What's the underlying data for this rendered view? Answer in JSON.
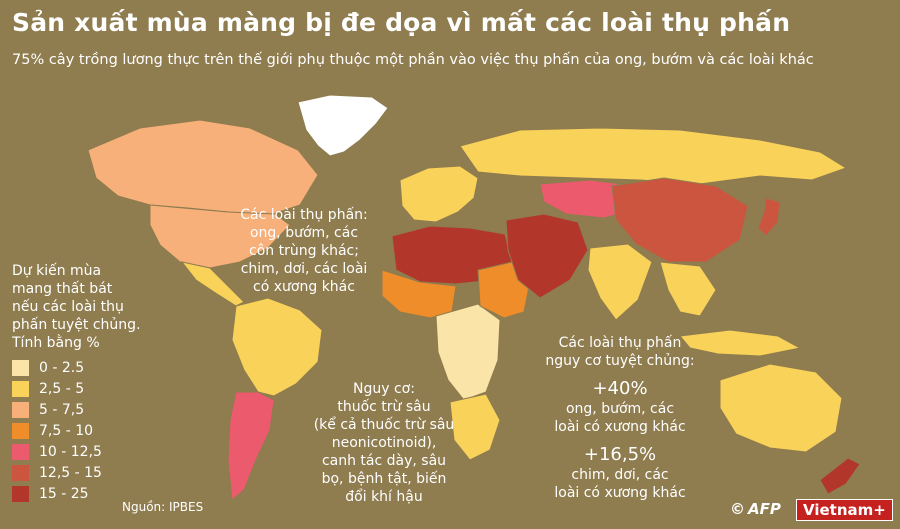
{
  "title": "Sản xuất mùa màng bị đe dọa vì mất các loài thụ phấn",
  "subtitle": "75% cây trồng lương thực trên thế giới phụ thuộc một phần vào việc thụ phấn của ong, bướm và các loài khác",
  "pollinators_note": [
    "Các loài thụ phấn:",
    "ong, bướm, các",
    "côn trùng khác;",
    "chim, dơi, các loài",
    "có xương khác"
  ],
  "legend": {
    "title": [
      "Dự kiến mùa",
      "mang thất bát",
      "nếu các loài thụ",
      "phấn tuyệt chủng.",
      "Tính bằng %"
    ],
    "items": [
      {
        "label": "0 - 2.5",
        "color": "#fbe4a7"
      },
      {
        "label": "2,5 - 5",
        "color": "#f9d25a"
      },
      {
        "label": "5 - 7,5",
        "color": "#f7b07a"
      },
      {
        "label": "7,5 - 10",
        "color": "#ee8d2a"
      },
      {
        "label": "10 - 12,5",
        "color": "#ec5a6e"
      },
      {
        "label": "12,5 - 15",
        "color": "#cc5540"
      },
      {
        "label": "15 - 25",
        "color": "#b3362b"
      }
    ]
  },
  "risk_note": [
    "Nguy cơ:",
    "thuốc trừ sâu",
    "(kể cả thuốc trừ sâu",
    "neonicotinoid),",
    "canh tác dày, sâu",
    "bọ, bệnh tật, biến",
    "đổi khí hậu"
  ],
  "extinction_note": {
    "heading": [
      "Các loài thụ phấn",
      "nguy cơ tuyệt chủng:"
    ],
    "stat1": "+40%",
    "stat1_text": [
      "ong, bướm, các",
      "loài có xương khác"
    ],
    "stat2": "+16,5%",
    "stat2_text": [
      "chim, dơi, các",
      "loài có xương khác"
    ]
  },
  "source": "Nguồn: IPBES",
  "credits": {
    "copyright": "©",
    "agency": "AFP",
    "brand": "Vietnam+"
  },
  "map_regions": [
    {
      "name": "greenland",
      "color": "#ffffff"
    },
    {
      "name": "north-america",
      "color": "#f7b07a"
    },
    {
      "name": "usa-mexico",
      "color": "#f7b07a"
    },
    {
      "name": "central-america",
      "color": "#f9d25a"
    },
    {
      "name": "south-america",
      "color": "#f9d25a"
    },
    {
      "name": "chile-argentina",
      "color": "#ec5a6e"
    },
    {
      "name": "europe",
      "color": "#f9d25a"
    },
    {
      "name": "russia",
      "color": "#f9d25a"
    },
    {
      "name": "north-africa",
      "color": "#b3362b"
    },
    {
      "name": "west-africa",
      "color": "#ee8d2a"
    },
    {
      "name": "central-africa",
      "color": "#fbe4a7"
    },
    {
      "name": "east-africa",
      "color": "#ee8d2a"
    },
    {
      "name": "southern-africa",
      "color": "#f9d25a"
    },
    {
      "name": "middle-east",
      "color": "#b3362b"
    },
    {
      "name": "central-asia",
      "color": "#ec5a6e"
    },
    {
      "name": "china",
      "color": "#cc5540"
    },
    {
      "name": "india",
      "color": "#f9d25a"
    },
    {
      "name": "southeast-asia",
      "color": "#f9d25a"
    },
    {
      "name": "indonesia",
      "color": "#f9d25a"
    },
    {
      "name": "australia",
      "color": "#f9d25a"
    },
    {
      "name": "new-zealand",
      "color": "#b3362b"
    },
    {
      "name": "japan",
      "color": "#cc5540"
    }
  ]
}
